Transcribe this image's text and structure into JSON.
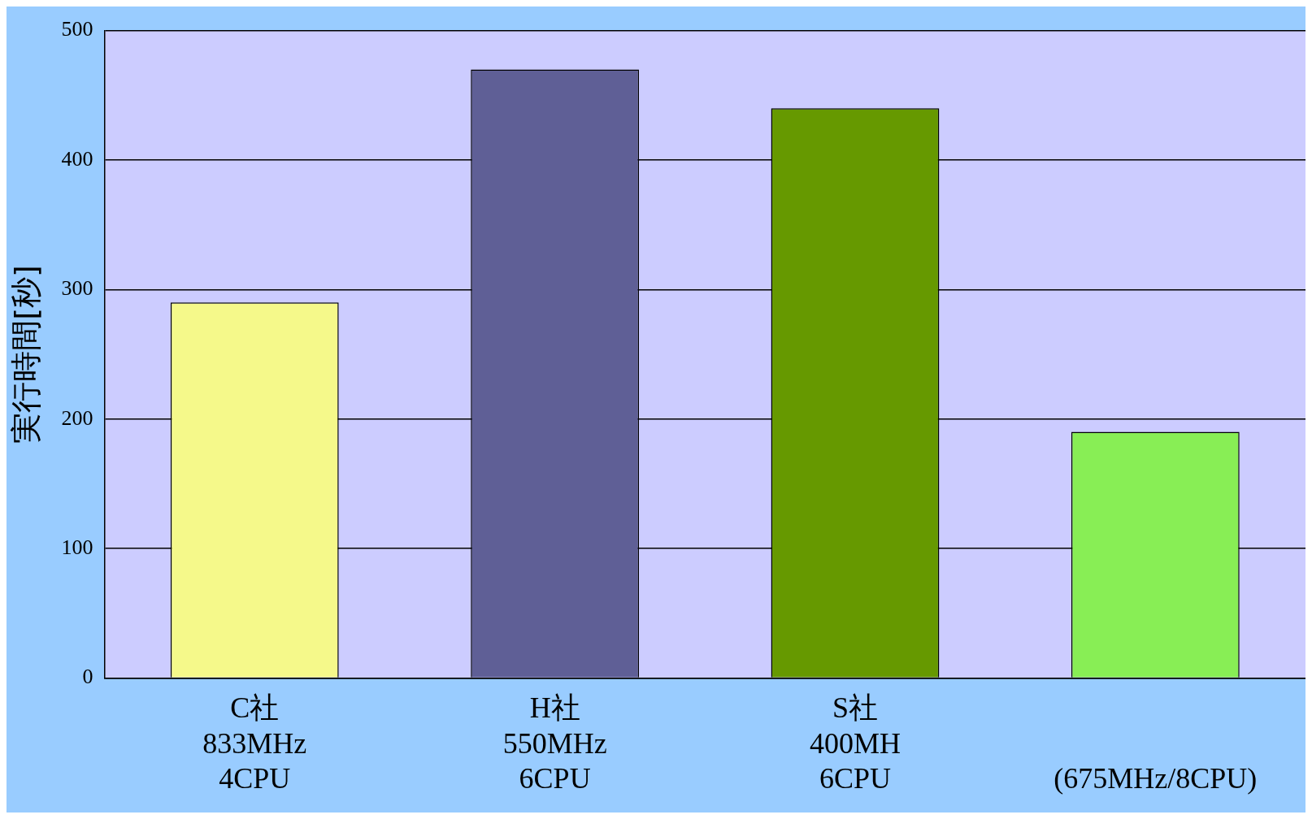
{
  "chart_data": {
    "type": "bar",
    "ylabel": "実行時間[秒]",
    "categories": [
      "C社\n833MHz\n4CPU",
      "H社\n550MHz\n6CPU",
      "S社\n400MH\n6CPU",
      "\n\n(675MHz/8CPU)"
    ],
    "values": [
      290,
      470,
      440,
      190
    ],
    "colors": [
      "#f5f98a",
      "#5f5f96",
      "#669900",
      "#88ee55"
    ],
    "ylim": [
      0,
      500
    ],
    "yticks": [
      0,
      100,
      200,
      300,
      400,
      500
    ],
    "grid": "y",
    "legend": false
  }
}
